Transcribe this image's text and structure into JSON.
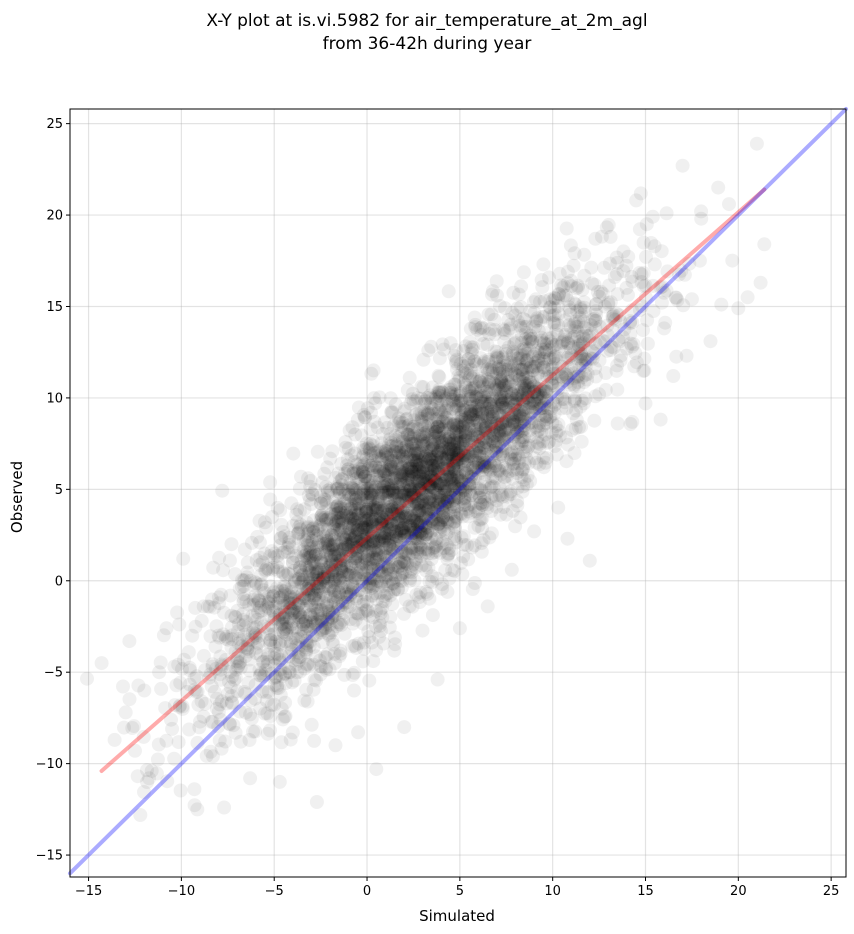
{
  "chart_data": {
    "type": "scatter",
    "title_line1": "X-Y plot at is.vi.5982 for air_temperature_at_2m_agl",
    "title_line2": "from 36-42h during year",
    "xlabel": "Simulated",
    "ylabel": "Observed",
    "xlim": [
      -16.0,
      25.8
    ],
    "ylim": [
      -16.2,
      25.8
    ],
    "xticks": [
      -15,
      -10,
      -5,
      0,
      5,
      10,
      15,
      20,
      25
    ],
    "yticks": [
      -15,
      -10,
      -5,
      0,
      5,
      10,
      15,
      20,
      25
    ],
    "xtick_labels": [
      "−15",
      "−10",
      "−5",
      "0",
      "5",
      "10",
      "15",
      "20",
      "25"
    ],
    "ytick_labels": [
      "−15",
      "−10",
      "−5",
      "0",
      "5",
      "10",
      "15",
      "20",
      "25"
    ],
    "grid": true,
    "point_color": "#000000",
    "point_alpha": 0.06,
    "series": [
      {
        "kind": "scatter-cloud",
        "note_points": "dense cloud of observations",
        "points": [
          [
            -14.3,
            -4.5
          ],
          [
            -13.6,
            -8.7
          ],
          [
            -13.0,
            -7.2
          ],
          [
            -12.8,
            -3.3
          ],
          [
            -12.5,
            -9.3
          ],
          [
            -12.0,
            -6.0
          ],
          [
            -11.6,
            -10.4
          ],
          [
            -11.2,
            -5.0
          ],
          [
            -10.8,
            -2.6
          ],
          [
            -10.5,
            -8.1
          ],
          [
            -10.1,
            -6.9
          ],
          [
            -9.9,
            1.2
          ],
          [
            -9.6,
            -3.9
          ],
          [
            -9.3,
            -11.4
          ],
          [
            -9.0,
            -7.7
          ],
          [
            -8.8,
            -1.4
          ],
          [
            -8.5,
            -5.3
          ],
          [
            -8.3,
            -9.6
          ],
          [
            -8.0,
            -3.0
          ],
          [
            -7.7,
            -12.4
          ],
          [
            -7.5,
            -6.2
          ],
          [
            -7.3,
            2.0
          ],
          [
            -7.0,
            -4.4
          ],
          [
            -6.8,
            -8.8
          ],
          [
            -6.5,
            -1.1
          ],
          [
            -6.3,
            -10.8
          ],
          [
            -6.0,
            -5.7
          ],
          [
            -5.7,
            -2.3
          ],
          [
            -5.5,
            3.2
          ],
          [
            -5.2,
            -7.4
          ],
          [
            -5.0,
            -3.6
          ],
          [
            -4.7,
            -11.0
          ],
          [
            -4.5,
            0.4
          ],
          [
            -4.2,
            -5.0
          ],
          [
            -4.0,
            -8.3
          ],
          [
            -3.7,
            2.6
          ],
          [
            -3.5,
            -2.0
          ],
          [
            -3.2,
            -6.6
          ],
          [
            -3.0,
            4.2
          ],
          [
            -2.7,
            -12.1
          ],
          [
            -2.5,
            -0.6
          ],
          [
            -2.2,
            -4.2
          ],
          [
            -2.0,
            5.0
          ],
          [
            -1.7,
            -9.0
          ],
          [
            -1.5,
            1.6
          ],
          [
            -1.2,
            -2.9
          ],
          [
            -1.0,
            6.1
          ],
          [
            -0.7,
            -6.0
          ],
          [
            -0.5,
            8.8
          ],
          [
            -0.2,
            2.7
          ],
          [
            0.0,
            -1.6
          ],
          [
            0.3,
            7.4
          ],
          [
            0.5,
            -10.3
          ],
          [
            0.8,
            4.8
          ],
          [
            1.0,
            0.2
          ],
          [
            1.3,
            9.2
          ],
          [
            1.5,
            -3.1
          ],
          [
            1.8,
            5.6
          ],
          [
            2.0,
            -8.0
          ],
          [
            2.3,
            11.1
          ],
          [
            2.5,
            3.3
          ],
          [
            2.8,
            -0.9
          ],
          [
            3.0,
            7.9
          ],
          [
            3.3,
            12.6
          ],
          [
            3.5,
            1.5
          ],
          [
            3.8,
            -5.4
          ],
          [
            4.0,
            9.6
          ],
          [
            4.3,
            5.2
          ],
          [
            4.5,
            13.0
          ],
          [
            4.8,
            2.1
          ],
          [
            5.0,
            -2.6
          ],
          [
            5.3,
            10.7
          ],
          [
            5.5,
            6.8
          ],
          [
            5.8,
            14.4
          ],
          [
            6.0,
            3.0
          ],
          [
            6.3,
            11.9
          ],
          [
            6.5,
            -1.4
          ],
          [
            6.8,
            8.3
          ],
          [
            7.0,
            15.6
          ],
          [
            7.3,
            4.6
          ],
          [
            7.5,
            12.4
          ],
          [
            7.8,
            0.6
          ],
          [
            8.0,
            9.7
          ],
          [
            8.3,
            16.1
          ],
          [
            8.5,
            6.4
          ],
          [
            8.8,
            13.4
          ],
          [
            9.0,
            2.7
          ],
          [
            9.3,
            10.5
          ],
          [
            9.5,
            17.3
          ],
          [
            9.8,
            7.6
          ],
          [
            10.0,
            14.5
          ],
          [
            10.3,
            4.0
          ],
          [
            10.5,
            11.7
          ],
          [
            10.8,
            2.3
          ],
          [
            11.0,
            16.4
          ],
          [
            11.3,
            8.8
          ],
          [
            11.5,
            13.1
          ],
          [
            12.0,
            1.1
          ],
          [
            12.3,
            18.7
          ],
          [
            12.5,
            10.2
          ],
          [
            13.0,
            15.2
          ],
          [
            13.5,
            8.6
          ],
          [
            14.0,
            12.7
          ],
          [
            14.5,
            20.8
          ],
          [
            15.0,
            9.7
          ],
          [
            15.5,
            17.3
          ],
          [
            16.0,
            13.8
          ],
          [
            16.5,
            11.2
          ],
          [
            17.0,
            22.7
          ],
          [
            17.5,
            15.4
          ],
          [
            18.0,
            19.8
          ],
          [
            18.5,
            13.1
          ],
          [
            19.5,
            20.6
          ],
          [
            20.0,
            14.9
          ],
          [
            20.5,
            15.5
          ],
          [
            21.0,
            23.9
          ],
          [
            21.2,
            16.3
          ],
          [
            21.4,
            18.4
          ]
        ]
      },
      {
        "kind": "line",
        "name_hidden": "fit",
        "color": "#ff0000",
        "alpha": 0.33,
        "x": [
          -14.3,
          21.4
        ],
        "y": [
          -10.4,
          21.4
        ]
      },
      {
        "kind": "line",
        "name_hidden": "one-to-one",
        "color": "#0000ff",
        "alpha": 0.33,
        "x": [
          -16.0,
          25.8
        ],
        "y": [
          -16.0,
          25.8
        ]
      }
    ]
  }
}
